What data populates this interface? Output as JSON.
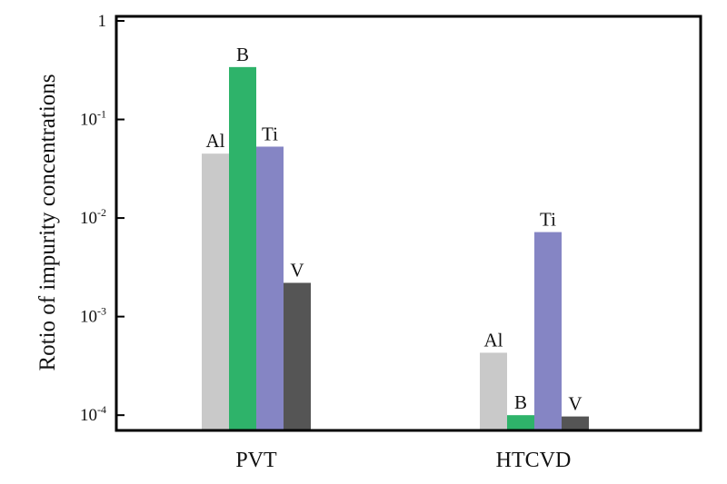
{
  "chart_data": {
    "type": "bar",
    "scale": "log",
    "ylabel": "Rotio of impurity concentrations",
    "xlabel": "",
    "ylim": [
      7e-05,
      1
    ],
    "grid": false,
    "legend": "none",
    "y_ticks": [
      {
        "value": 1,
        "base": "1",
        "exp": ""
      },
      {
        "value": 0.1,
        "base": "10",
        "exp": "-1"
      },
      {
        "value": 0.01,
        "base": "10",
        "exp": "-2"
      },
      {
        "value": 0.001,
        "base": "10",
        "exp": "-3"
      },
      {
        "value": 0.0001,
        "base": "10",
        "exp": "-4"
      }
    ],
    "categories": [
      "PVT",
      "HTCVD"
    ],
    "series": [
      {
        "name": "Al",
        "color": "#c9c9c9",
        "values": [
          0.045,
          0.00043
        ]
      },
      {
        "name": "B",
        "color": "#2eb36a",
        "values": [
          0.34,
          0.0001
        ]
      },
      {
        "name": "Ti",
        "color": "#8585c4",
        "values": [
          0.053,
          0.0072
        ]
      },
      {
        "name": "V",
        "color": "#555555",
        "values": [
          0.0022,
          9.7e-05
        ]
      }
    ]
  }
}
